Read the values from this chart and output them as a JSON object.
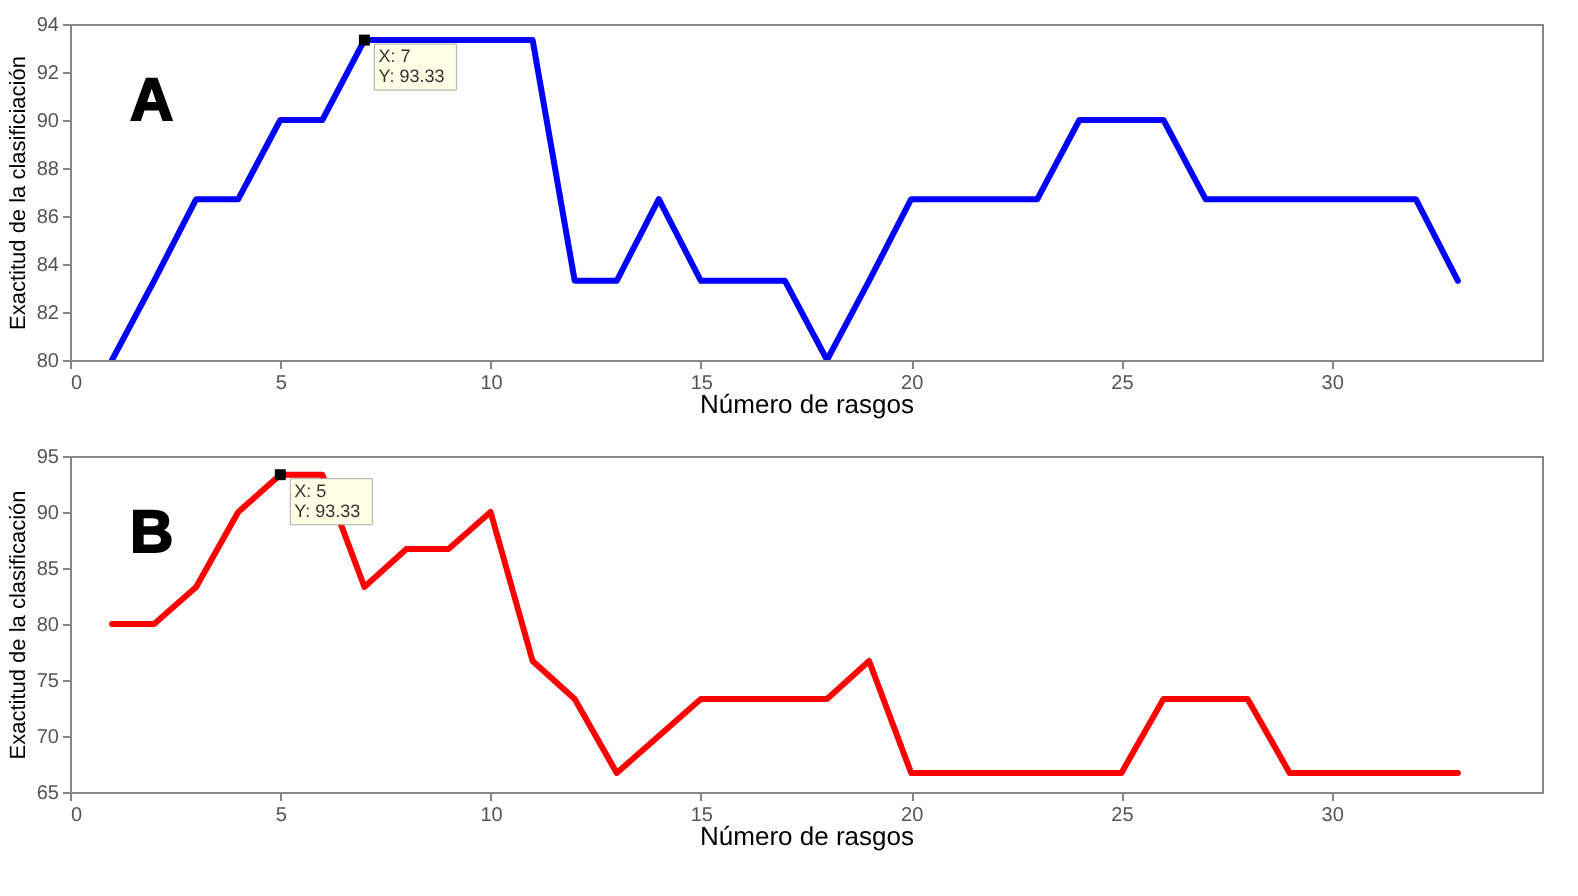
{
  "chart_data": [
    {
      "type": "line",
      "xlabel": "Número de rasgos",
      "ylabel": "Exactitud de la clasificiación",
      "x": [
        1,
        2,
        3,
        4,
        5,
        6,
        7,
        8,
        9,
        10,
        11,
        12,
        13,
        14,
        15,
        16,
        17,
        18,
        19,
        20,
        21,
        22,
        23,
        24,
        25,
        26,
        27,
        28,
        29,
        30,
        31,
        32,
        33
      ],
      "series": [
        {
          "color": "#0000ff",
          "values": [
            80,
            83.3,
            86.7,
            86.7,
            90,
            90,
            93.33,
            93.33,
            93.33,
            93.33,
            93.33,
            83.3,
            83.3,
            86.7,
            83.3,
            83.3,
            83.3,
            80,
            83.3,
            86.7,
            86.7,
            86.7,
            86.7,
            90,
            90,
            90,
            86.7,
            86.7,
            86.7,
            86.7,
            86.7,
            86.7,
            83.3
          ]
        }
      ],
      "xlim": [
        0,
        35
      ],
      "xticks": [
        0,
        5,
        10,
        15,
        20,
        25,
        30
      ],
      "ylim": [
        80,
        94
      ],
      "yticks": [
        80,
        82,
        84,
        86,
        88,
        90,
        92,
        94
      ],
      "marker": "none",
      "line_style": "solid",
      "grid": false,
      "annotations": [
        "A",
        {
          "text": "X: 7\nY: 93.33",
          "x": 7,
          "y": 93.33
        }
      ]
    },
    {
      "type": "line",
      "xlabel": "Número de rasgos",
      "ylabel": "Exactitud de la clasificación",
      "x": [
        1,
        2,
        3,
        4,
        5,
        6,
        7,
        8,
        9,
        10,
        11,
        12,
        13,
        14,
        15,
        16,
        17,
        18,
        19,
        20,
        21,
        22,
        23,
        24,
        25,
        26,
        27,
        28,
        29,
        30,
        31,
        32,
        33
      ],
      "series": [
        {
          "color": "#ff0000",
          "values": [
            80,
            80,
            83.3,
            90,
            93.33,
            93.33,
            83.3,
            86.7,
            86.7,
            90,
            76.7,
            73.3,
            66.7,
            70,
            73.3,
            73.3,
            73.3,
            73.3,
            76.7,
            66.7,
            66.7,
            66.7,
            66.7,
            66.7,
            66.7,
            73.3,
            73.3,
            73.3,
            66.7,
            66.7,
            66.7,
            66.7,
            66.7
          ]
        }
      ],
      "xlim": [
        0,
        35
      ],
      "xticks": [
        0,
        5,
        10,
        15,
        20,
        25,
        30
      ],
      "ylim": [
        65,
        95
      ],
      "yticks": [
        65,
        70,
        75,
        80,
        85,
        90,
        95
      ],
      "marker": "none",
      "line_style": "solid",
      "grid": false,
      "annotations": [
        "B",
        {
          "text": "X: 5\nY: 93.33",
          "x": 5,
          "y": 93.33
        }
      ]
    }
  ]
}
